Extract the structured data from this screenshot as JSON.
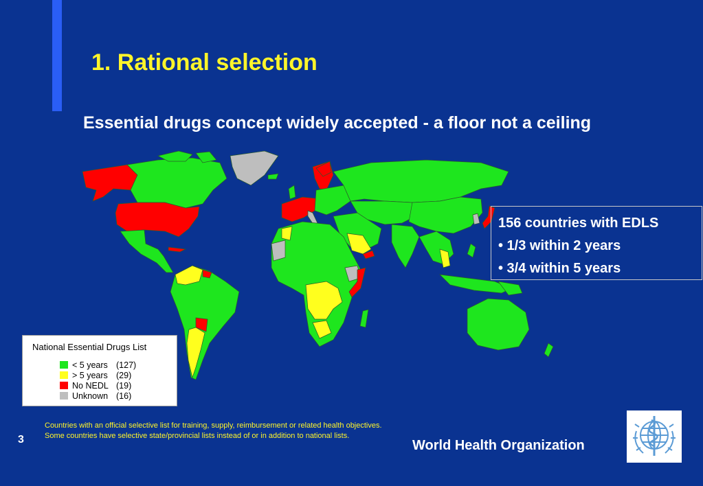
{
  "slide": {
    "title": "1.  Rational selection",
    "subtitle": "Essential drugs concept widely accepted - a floor not a ceiling",
    "page_number": "3",
    "organization": "World Health Organization",
    "footnote": "Countries with an official selective list for training, supply, reimbursement or related health objectives.  Some countries have selective state/provincial lists instead of or in addition to national lists."
  },
  "info_box": {
    "lines": [
      "156 countries with EDLS",
      "• 1/3 within 2 years",
      "•  3/4 within 5 years"
    ]
  },
  "legend": {
    "title": "National Essential Drugs List",
    "items": [
      {
        "label": "< 5 years",
        "count": "(127)",
        "color": "#1ee61e"
      },
      {
        "label": "> 5 years",
        "count": "(29)",
        "color": "#ffff1e"
      },
      {
        "label": "No NEDL",
        "count": "(19)",
        "color": "#ff0000"
      },
      {
        "label": "Unknown",
        "count": "(16)",
        "color": "#bebebe"
      }
    ]
  },
  "colors": {
    "background": "#0a3391",
    "accent_bar": "#2a5ef5",
    "title": "#fff52a",
    "footnote": "#fff52a",
    "green": "#1ee61e",
    "yellow": "#ffff1e",
    "red": "#ff0000",
    "gray": "#bebebe"
  },
  "logo": {
    "icon": "who-emblem-icon"
  }
}
